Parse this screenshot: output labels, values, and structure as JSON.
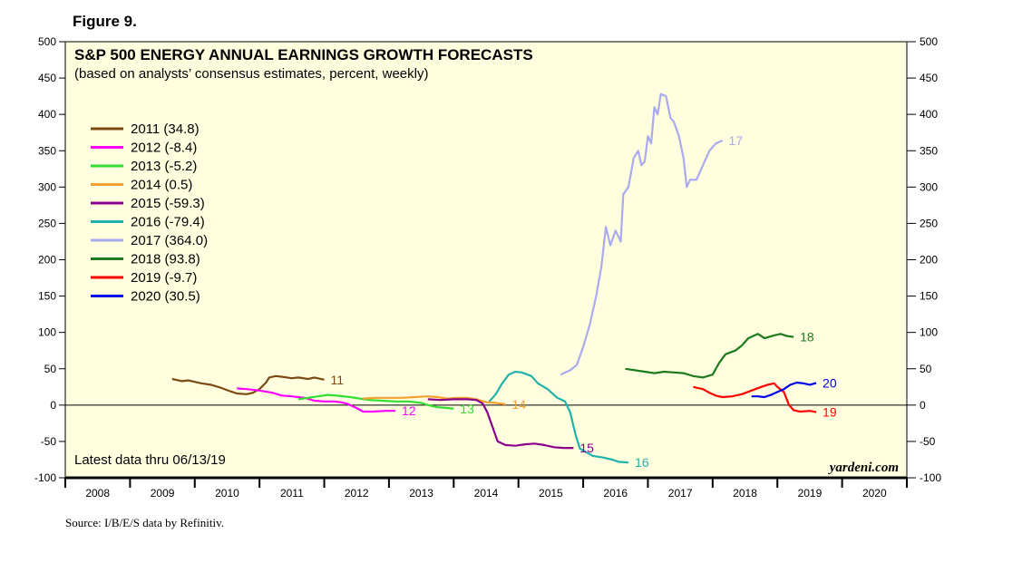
{
  "figure_label": "Figure 9.",
  "source": "Source: I/B/E/S data by Refinitiv.",
  "colors": {
    "background": "#FFFFE0",
    "s2011": "#7B4A12",
    "s2012": "#FF00FF",
    "s2013": "#33DD33",
    "s2014": "#F5A030",
    "s2015": "#8B008B",
    "s2016": "#20B2AA",
    "s2017": "#AAAAEE",
    "s2018": "#1E7A1E",
    "s2019": "#FF0000",
    "s2020": "#0000EE"
  },
  "chart_data": {
    "type": "line",
    "title": "S&P 500 ENERGY ANNUAL EARNINGS GROWTH FORECASTS",
    "subtitle": "(based on analysts’ consensus estimates, percent, weekly)",
    "note": "Latest data thru 06/13/19",
    "brand": "yardeni.com",
    "ylim": [
      -100,
      500
    ],
    "yticks": [
      "500",
      "450",
      "400",
      "350",
      "300",
      "250",
      "200",
      "150",
      "100",
      "50",
      "0",
      "-50",
      "-100"
    ],
    "xlim": [
      2008,
      2021
    ],
    "xticks": [
      "2008",
      "2009",
      "2010",
      "2011",
      "2012",
      "2013",
      "2014",
      "2015",
      "2016",
      "2017",
      "2018",
      "2019",
      "2020"
    ],
    "legend_position": "upper-left",
    "series": [
      {
        "name": "2011 (34.8)",
        "label": "11",
        "color_key": "s2011",
        "points": [
          [
            2009.65,
            36
          ],
          [
            2009.75,
            34
          ],
          [
            2009.8,
            33
          ],
          [
            2009.9,
            34
          ],
          [
            2010.0,
            32
          ],
          [
            2010.1,
            30
          ],
          [
            2010.25,
            28
          ],
          [
            2010.4,
            24
          ],
          [
            2010.55,
            19
          ],
          [
            2010.65,
            16
          ],
          [
            2010.8,
            15
          ],
          [
            2010.9,
            17
          ],
          [
            2011.0,
            22
          ],
          [
            2011.1,
            31
          ],
          [
            2011.15,
            38
          ],
          [
            2011.25,
            40
          ],
          [
            2011.35,
            39
          ],
          [
            2011.5,
            37
          ],
          [
            2011.6,
            38
          ],
          [
            2011.75,
            36
          ],
          [
            2011.85,
            38
          ],
          [
            2012.0,
            35
          ]
        ]
      },
      {
        "name": "2012 (-8.4)",
        "label": "12",
        "color_key": "s2012",
        "points": [
          [
            2010.65,
            23
          ],
          [
            2010.8,
            22
          ],
          [
            2011.0,
            20
          ],
          [
            2011.2,
            17
          ],
          [
            2011.35,
            13
          ],
          [
            2011.5,
            12
          ],
          [
            2011.7,
            10
          ],
          [
            2011.85,
            6
          ],
          [
            2012.0,
            5
          ],
          [
            2012.15,
            5
          ],
          [
            2012.25,
            4
          ],
          [
            2012.35,
            2
          ],
          [
            2012.5,
            -4
          ],
          [
            2012.6,
            -9
          ],
          [
            2012.75,
            -9
          ],
          [
            2012.95,
            -8
          ],
          [
            2013.1,
            -8
          ]
        ]
      },
      {
        "name": "2013 (-5.2)",
        "label": "13",
        "color_key": "s2013",
        "points": [
          [
            2011.6,
            8
          ],
          [
            2011.75,
            10
          ],
          [
            2011.9,
            12
          ],
          [
            2012.05,
            14
          ],
          [
            2012.2,
            13
          ],
          [
            2012.4,
            11
          ],
          [
            2012.55,
            9
          ],
          [
            2012.7,
            7
          ],
          [
            2012.9,
            6
          ],
          [
            2013.1,
            5
          ],
          [
            2013.3,
            5
          ],
          [
            2013.5,
            3
          ],
          [
            2013.6,
            0
          ],
          [
            2013.75,
            -3
          ],
          [
            2013.9,
            -4
          ],
          [
            2014.0,
            -5
          ]
        ]
      },
      {
        "name": "2014 (0.5)",
        "label": "14",
        "color_key": "s2014",
        "points": [
          [
            2012.6,
            9
          ],
          [
            2012.8,
            10
          ],
          [
            2013.0,
            10
          ],
          [
            2013.2,
            10
          ],
          [
            2013.4,
            11
          ],
          [
            2013.6,
            12
          ],
          [
            2013.75,
            11
          ],
          [
            2013.9,
            9
          ],
          [
            2014.05,
            10
          ],
          [
            2014.2,
            10
          ],
          [
            2014.35,
            8
          ],
          [
            2014.5,
            4
          ],
          [
            2014.65,
            3
          ],
          [
            2014.8,
            1
          ]
        ]
      },
      {
        "name": "2015 (-59.3)",
        "label": "15",
        "color_key": "s2015",
        "points": [
          [
            2013.6,
            8
          ],
          [
            2013.8,
            7
          ],
          [
            2014.0,
            8
          ],
          [
            2014.2,
            8
          ],
          [
            2014.35,
            7
          ],
          [
            2014.45,
            2
          ],
          [
            2014.52,
            -10
          ],
          [
            2014.6,
            -30
          ],
          [
            2014.68,
            -50
          ],
          [
            2014.8,
            -55
          ],
          [
            2014.95,
            -56
          ],
          [
            2015.1,
            -54
          ],
          [
            2015.25,
            -53
          ],
          [
            2015.4,
            -55
          ],
          [
            2015.55,
            -58
          ],
          [
            2015.7,
            -59
          ],
          [
            2015.85,
            -59
          ]
        ]
      },
      {
        "name": "2016 (-79.4)",
        "label": "16",
        "color_key": "s2016",
        "points": [
          [
            2014.55,
            5
          ],
          [
            2014.65,
            15
          ],
          [
            2014.75,
            30
          ],
          [
            2014.85,
            42
          ],
          [
            2014.95,
            46
          ],
          [
            2015.05,
            45
          ],
          [
            2015.2,
            40
          ],
          [
            2015.3,
            30
          ],
          [
            2015.45,
            22
          ],
          [
            2015.6,
            10
          ],
          [
            2015.72,
            5
          ],
          [
            2015.8,
            -10
          ],
          [
            2015.88,
            -40
          ],
          [
            2015.95,
            -60
          ],
          [
            2016.05,
            -65
          ],
          [
            2016.15,
            -70
          ],
          [
            2016.3,
            -72
          ],
          [
            2016.45,
            -75
          ],
          [
            2016.55,
            -78
          ],
          [
            2016.7,
            -79
          ]
        ]
      },
      {
        "name": "2017 (364.0)",
        "label": "17",
        "color_key": "s2017",
        "points": [
          [
            2015.65,
            42
          ],
          [
            2015.8,
            48
          ],
          [
            2015.9,
            55
          ],
          [
            2016.0,
            80
          ],
          [
            2016.1,
            110
          ],
          [
            2016.2,
            150
          ],
          [
            2016.28,
            190
          ],
          [
            2016.35,
            245
          ],
          [
            2016.42,
            220
          ],
          [
            2016.5,
            240
          ],
          [
            2016.58,
            225
          ],
          [
            2016.62,
            290
          ],
          [
            2016.7,
            300
          ],
          [
            2016.78,
            340
          ],
          [
            2016.85,
            350
          ],
          [
            2016.9,
            330
          ],
          [
            2016.95,
            335
          ],
          [
            2017.0,
            370
          ],
          [
            2017.05,
            360
          ],
          [
            2017.1,
            410
          ],
          [
            2017.15,
            400
          ],
          [
            2017.2,
            428
          ],
          [
            2017.28,
            425
          ],
          [
            2017.35,
            395
          ],
          [
            2017.4,
            390
          ],
          [
            2017.48,
            370
          ],
          [
            2017.55,
            340
          ],
          [
            2017.6,
            300
          ],
          [
            2017.65,
            310
          ],
          [
            2017.75,
            310
          ],
          [
            2017.85,
            330
          ],
          [
            2017.95,
            350
          ],
          [
            2018.05,
            360
          ],
          [
            2018.15,
            364
          ]
        ]
      },
      {
        "name": "2018 (93.8)",
        "label": "18",
        "color_key": "s2018",
        "points": [
          [
            2016.65,
            50
          ],
          [
            2016.8,
            48
          ],
          [
            2016.95,
            46
          ],
          [
            2017.1,
            44
          ],
          [
            2017.25,
            46
          ],
          [
            2017.4,
            45
          ],
          [
            2017.55,
            44
          ],
          [
            2017.7,
            40
          ],
          [
            2017.85,
            38
          ],
          [
            2018.0,
            42
          ],
          [
            2018.1,
            58
          ],
          [
            2018.2,
            70
          ],
          [
            2018.35,
            75
          ],
          [
            2018.45,
            82
          ],
          [
            2018.55,
            92
          ],
          [
            2018.7,
            98
          ],
          [
            2018.8,
            92
          ],
          [
            2018.95,
            96
          ],
          [
            2019.05,
            98
          ],
          [
            2019.15,
            95
          ],
          [
            2019.25,
            93.8
          ]
        ]
      },
      {
        "name": "2019 (-9.7)",
        "label": "19",
        "color_key": "s2019",
        "points": [
          [
            2017.7,
            25
          ],
          [
            2017.85,
            22
          ],
          [
            2017.95,
            17
          ],
          [
            2018.05,
            13
          ],
          [
            2018.15,
            11
          ],
          [
            2018.3,
            12
          ],
          [
            2018.45,
            15
          ],
          [
            2018.6,
            20
          ],
          [
            2018.75,
            25
          ],
          [
            2018.85,
            28
          ],
          [
            2018.95,
            30
          ],
          [
            2019.0,
            25
          ],
          [
            2019.1,
            18
          ],
          [
            2019.18,
            0
          ],
          [
            2019.25,
            -7
          ],
          [
            2019.35,
            -9
          ],
          [
            2019.5,
            -8
          ],
          [
            2019.6,
            -9.7
          ]
        ]
      },
      {
        "name": "2020 (30.5)",
        "label": "20",
        "color_key": "s2020",
        "points": [
          [
            2018.6,
            12
          ],
          [
            2018.7,
            12
          ],
          [
            2018.8,
            11
          ],
          [
            2018.9,
            14
          ],
          [
            2019.0,
            18
          ],
          [
            2019.1,
            22
          ],
          [
            2019.2,
            28
          ],
          [
            2019.3,
            31
          ],
          [
            2019.4,
            30
          ],
          [
            2019.5,
            28
          ],
          [
            2019.6,
            30.5
          ]
        ]
      }
    ]
  }
}
